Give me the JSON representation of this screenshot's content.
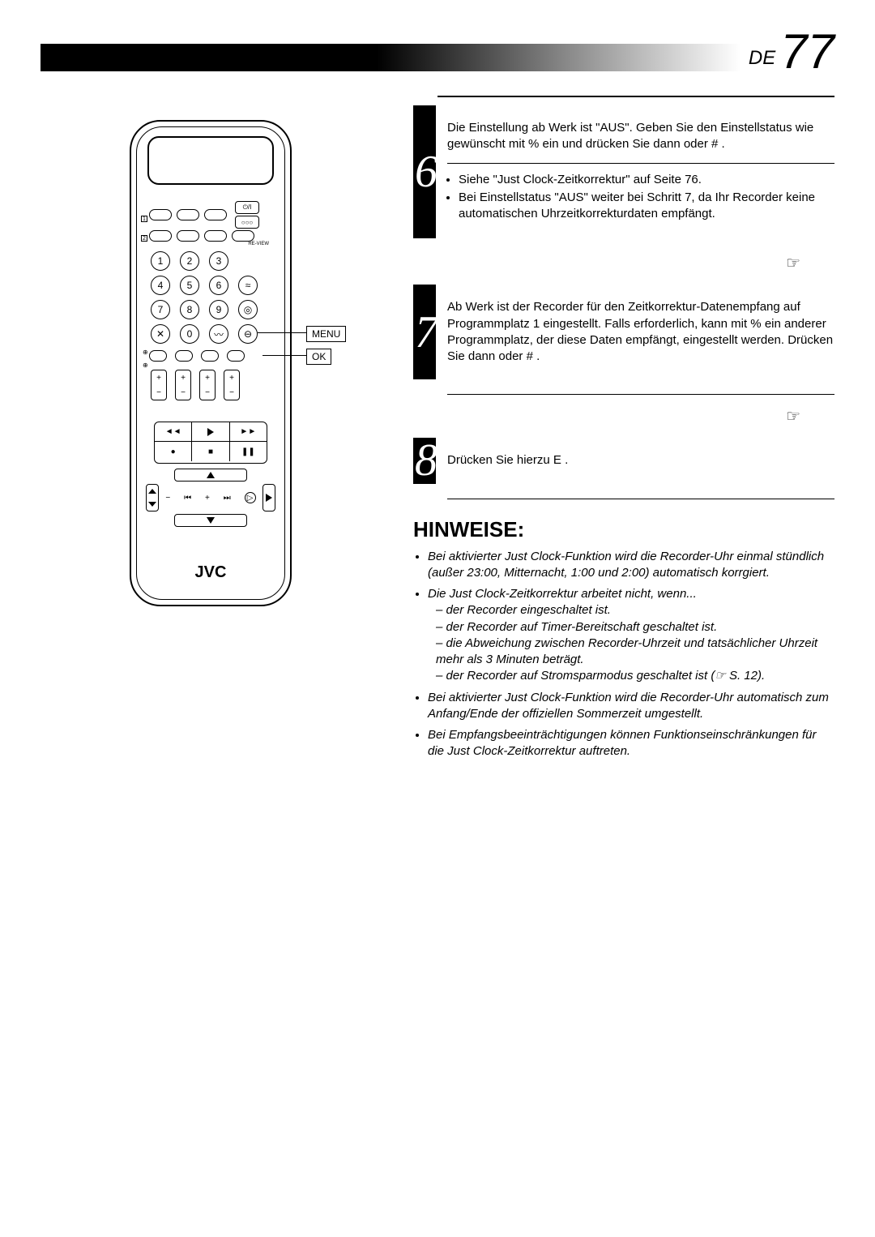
{
  "page": {
    "label": "DE",
    "number": "77"
  },
  "remote": {
    "brand": "JVC",
    "numbers": [
      "1",
      "2",
      "3",
      "4",
      "5",
      "6",
      "7",
      "8",
      "9",
      "0"
    ],
    "callouts": {
      "menu": "MENU",
      "ok": "OK"
    },
    "small_labels": {
      "review": "RE-VIEW",
      "power": "⏻/I",
      "dots": "○○○",
      "x": "✕",
      "squiggle": "〰"
    }
  },
  "steps": {
    "s6": {
      "num": "6",
      "text": "Die Einstellung ab Werk ist \"AUS\". Geben Sie den Einstellstatus wie gewünscht mit %   ein und drücken Sie dann        oder # .",
      "bullets": [
        "Siehe \"Just Clock-Zeitkorrektur\" auf Seite 76.",
        "Bei Einstellstatus \"AUS\" weiter bei Schritt 7, da Ihr Recorder keine automatischen Uhrzeitkorrekturdaten empfängt."
      ]
    },
    "s7": {
      "num": "7",
      "text": "Ab Werk ist der Recorder für den Zeitkorrektur-Datenempfang auf Programmplatz 1 eingestellt. Falls erforderlich, kann mit %   ein anderer Programmplatz, der diese Daten empfängt, eingestellt werden. Drücken Sie dann        oder # ."
    },
    "s8": {
      "num": "8",
      "text": "Drücken Sie hierzu   E     ."
    }
  },
  "hand_icon": "☞",
  "hinweise": {
    "title": "HINWEISE:",
    "items": [
      {
        "text": "Bei aktivierter Just Clock-Funktion wird die Recorder-Uhr einmal stündlich (außer 23:00, Mitternacht, 1:00 und 2:00) automatisch korrgiert."
      },
      {
        "text": "Die Just Clock-Zeitkorrektur arbeitet nicht, wenn...",
        "sub": [
          "der Recorder eingeschaltet ist.",
          "der Recorder auf Timer-Bereitschaft geschaltet ist.",
          "die Abweichung zwischen Recorder-Uhrzeit und tatsächlicher Uhrzeit mehr als 3 Minuten beträgt.",
          "der Recorder auf Stromsparmodus geschaltet ist (☞ S. 12)."
        ]
      },
      {
        "text": "Bei aktivierter Just Clock-Funktion wird die Recorder-Uhr automatisch zum Anfang/Ende der offiziellen Sommerzeit umgestellt."
      },
      {
        "text": "Bei Empfangsbeeinträchtigungen können Funktionseinschränkungen für die Just Clock-Zeitkorrektur auftreten."
      }
    ]
  }
}
